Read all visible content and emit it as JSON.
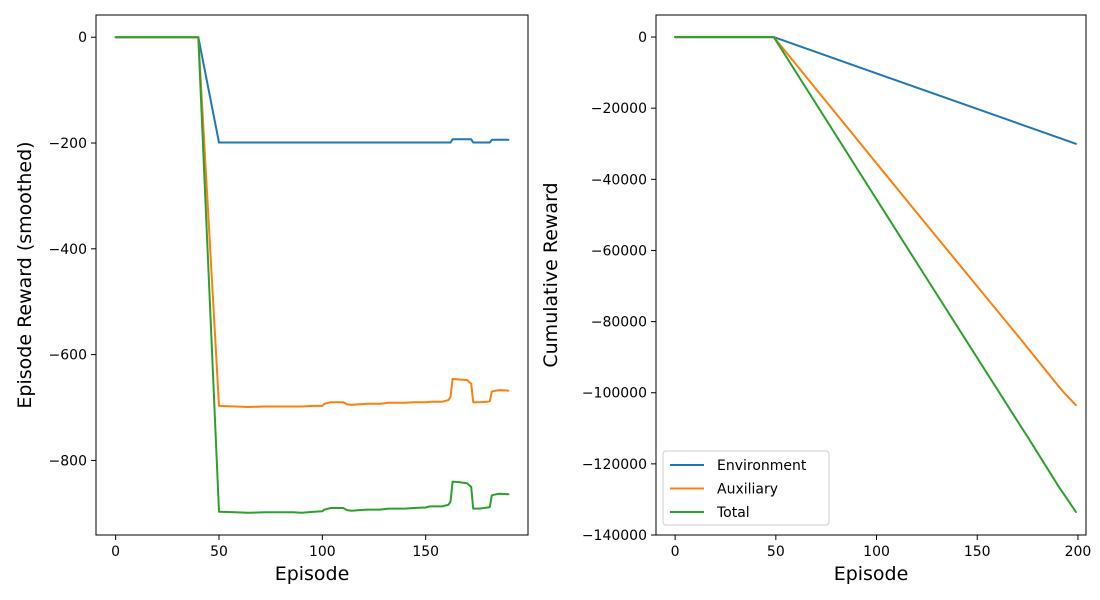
{
  "chart_data": [
    {
      "type": "line",
      "xlabel": "Episode",
      "ylabel": "Episode Reward (smoothed)",
      "xlim": [
        -9.5,
        199.5
      ],
      "ylim": [
        -941,
        42
      ],
      "xticks": [
        0,
        50,
        100,
        150
      ],
      "yticks": [
        0,
        -200,
        -400,
        -600,
        -800
      ],
      "series": [
        {
          "color": "#1f77b4",
          "points": [
            [
              0,
              0
            ],
            [
              40,
              0
            ],
            [
              50,
              -199
            ],
            [
              162,
              -199
            ],
            [
              163,
              -193
            ],
            [
              172,
              -193
            ],
            [
              173,
              -199
            ],
            [
              181,
              -199
            ],
            [
              182,
              -194
            ],
            [
              190,
              -194
            ]
          ]
        },
        {
          "color": "#ff7f0e",
          "points": [
            [
              0,
              0
            ],
            [
              40,
              0
            ],
            [
              50,
              -697
            ],
            [
              58,
              -698
            ],
            [
              64,
              -699
            ],
            [
              72,
              -698
            ],
            [
              78,
              -698
            ],
            [
              86,
              -698
            ],
            [
              90,
              -698
            ],
            [
              96,
              -697
            ],
            [
              100,
              -697
            ],
            [
              101,
              -693
            ],
            [
              104,
              -690
            ],
            [
              110,
              -690
            ],
            [
              112,
              -694
            ],
            [
              114,
              -695
            ],
            [
              118,
              -694
            ],
            [
              122,
              -693
            ],
            [
              128,
              -693
            ],
            [
              132,
              -691
            ],
            [
              136,
              -691
            ],
            [
              140,
              -691
            ],
            [
              144,
              -690
            ],
            [
              150,
              -690
            ],
            [
              152,
              -689
            ],
            [
              158,
              -689
            ],
            [
              161,
              -686
            ],
            [
              162,
              -680
            ],
            [
              163,
              -646
            ],
            [
              166,
              -647
            ],
            [
              170,
              -648
            ],
            [
              172,
              -655
            ],
            [
              173,
              -690
            ],
            [
              176,
              -690
            ],
            [
              180,
              -689
            ],
            [
              181,
              -688
            ],
            [
              182,
              -670
            ],
            [
              184,
              -668
            ],
            [
              186,
              -667
            ],
            [
              190,
              -668
            ]
          ]
        },
        {
          "color": "#2ca02c",
          "points": [
            [
              0,
              0
            ],
            [
              40,
              0
            ],
            [
              50,
              -897
            ],
            [
              58,
              -898
            ],
            [
              64,
              -899
            ],
            [
              72,
              -898
            ],
            [
              78,
              -898
            ],
            [
              86,
              -898
            ],
            [
              90,
              -899
            ],
            [
              96,
              -897
            ],
            [
              100,
              -896
            ],
            [
              101,
              -893
            ],
            [
              104,
              -890
            ],
            [
              110,
              -890
            ],
            [
              112,
              -894
            ],
            [
              114,
              -895
            ],
            [
              118,
              -894
            ],
            [
              122,
              -893
            ],
            [
              128,
              -893
            ],
            [
              132,
              -891
            ],
            [
              136,
              -891
            ],
            [
              140,
              -891
            ],
            [
              144,
              -890
            ],
            [
              150,
              -889
            ],
            [
              152,
              -887
            ],
            [
              158,
              -887
            ],
            [
              161,
              -884
            ],
            [
              162,
              -878
            ],
            [
              163,
              -840
            ],
            [
              166,
              -841
            ],
            [
              170,
              -843
            ],
            [
              172,
              -850
            ],
            [
              173,
              -891
            ],
            [
              176,
              -891
            ],
            [
              180,
              -889
            ],
            [
              181,
              -888
            ],
            [
              182,
              -866
            ],
            [
              184,
              -864
            ],
            [
              186,
              -863
            ],
            [
              190,
              -864
            ]
          ]
        }
      ]
    },
    {
      "type": "line",
      "xlabel": "Episode",
      "ylabel": "Cumulative Reward",
      "xlim": [
        -9.5,
        204
      ],
      "ylim": [
        -140000,
        6200
      ],
      "xticks": [
        0,
        50,
        100,
        150,
        200
      ],
      "yticks": [
        0,
        -20000,
        -40000,
        -60000,
        -80000,
        -100000,
        -120000,
        -140000
      ],
      "legend": {
        "position": "lower-left",
        "entries": [
          "Environment",
          "Auxiliary",
          "Total"
        ]
      },
      "series": [
        {
          "name": "Environment",
          "color": "#1f77b4",
          "points": [
            [
              0,
              0
            ],
            [
              49,
              0
            ],
            [
              199,
              -30000
            ]
          ]
        },
        {
          "name": "Auxiliary",
          "color": "#ff7f0e",
          "points": [
            [
              0,
              0
            ],
            [
              49,
              0
            ],
            [
              120,
              -49400
            ],
            [
              172,
              -85300
            ],
            [
              175,
              -87400
            ],
            [
              190,
              -97900
            ],
            [
              193,
              -99900
            ],
            [
              199,
              -103500
            ]
          ]
        },
        {
          "name": "Total",
          "color": "#2ca02c",
          "points": [
            [
              0,
              0
            ],
            [
              49,
              0
            ],
            [
              120,
              -63500
            ],
            [
              172,
              -109800
            ],
            [
              175,
              -112400
            ],
            [
              190,
              -126000
            ],
            [
              193,
              -128500
            ],
            [
              199,
              -133500
            ]
          ]
        }
      ]
    }
  ]
}
